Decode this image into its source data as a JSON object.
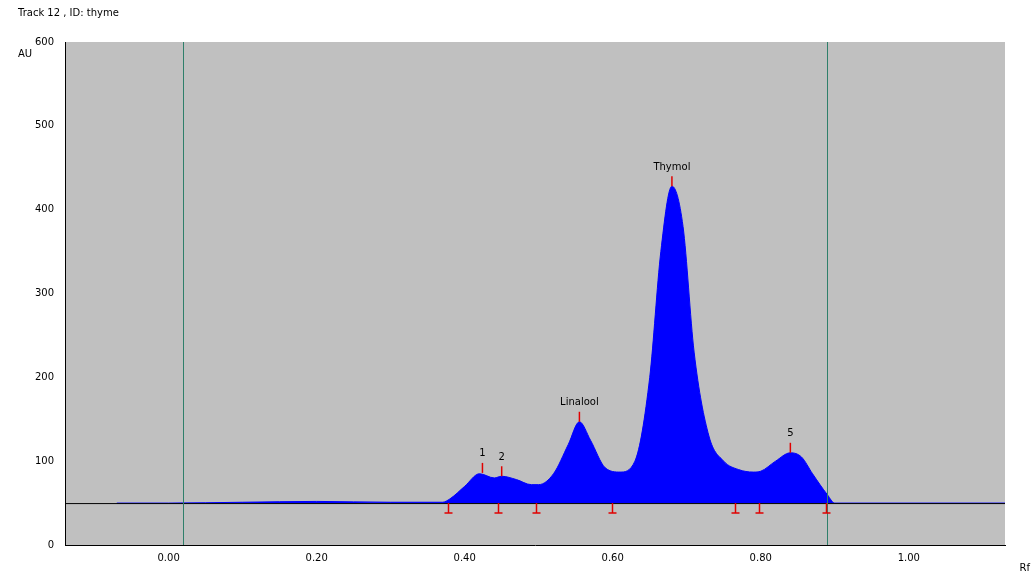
{
  "chart_data": {
    "type": "area",
    "title": "Track 12 , ID: thyme",
    "x_label": "Rf",
    "y_label": "AU",
    "x": [
      -0.07,
      0.0,
      0.1,
      0.2,
      0.3,
      0.37,
      0.38,
      0.4,
      0.42,
      0.44,
      0.45,
      0.47,
      0.49,
      0.5,
      0.52,
      0.54,
      0.555,
      0.57,
      0.59,
      0.61,
      0.63,
      0.65,
      0.665,
      0.68,
      0.695,
      0.71,
      0.73,
      0.75,
      0.77,
      0.79,
      0.8,
      0.82,
      0.84,
      0.855,
      0.87,
      0.89,
      0.9,
      1.13
    ],
    "values": [
      50,
      50,
      51,
      52,
      51,
      51,
      55,
      70,
      85,
      80,
      82,
      78,
      72,
      72,
      85,
      120,
      147,
      125,
      92,
      87,
      100,
      200,
      350,
      428,
      380,
      230,
      130,
      100,
      90,
      87,
      88,
      100,
      110,
      105,
      85,
      60,
      50,
      50
    ],
    "color": "#0000ff",
    "xlim": [
      -0.14,
      1.13
    ],
    "xticks": [
      {
        "value": 0,
        "label": "0.00"
      },
      {
        "value": 0.2,
        "label": "0.20"
      },
      {
        "value": 0.4,
        "label": "0.40"
      },
      {
        "value": 0.6,
        "label": "0.60"
      },
      {
        "value": 0.8,
        "label": "0.80"
      },
      {
        "value": 1,
        "label": "1.00"
      }
    ],
    "ylim": [
      0,
      600
    ],
    "yticks": [
      0,
      100,
      200,
      300,
      400,
      500,
      600
    ],
    "grid": false,
    "baseline": 50,
    "track_limits": [
      0.02,
      0.89
    ],
    "peak_boundaries": [
      0.377,
      0.445,
      0.497,
      0.599,
      0.765,
      0.797,
      0.888
    ],
    "annotations": [
      {
        "text": "1",
        "x": 0.424,
        "y": 86
      },
      {
        "text": "2",
        "x": 0.45,
        "y": 82
      },
      {
        "text": "Linalool",
        "x": 0.555,
        "y": 147
      },
      {
        "text": "Thymol",
        "x": 0.68,
        "y": 428
      },
      {
        "text": "5",
        "x": 0.84,
        "y": 110
      }
    ]
  }
}
